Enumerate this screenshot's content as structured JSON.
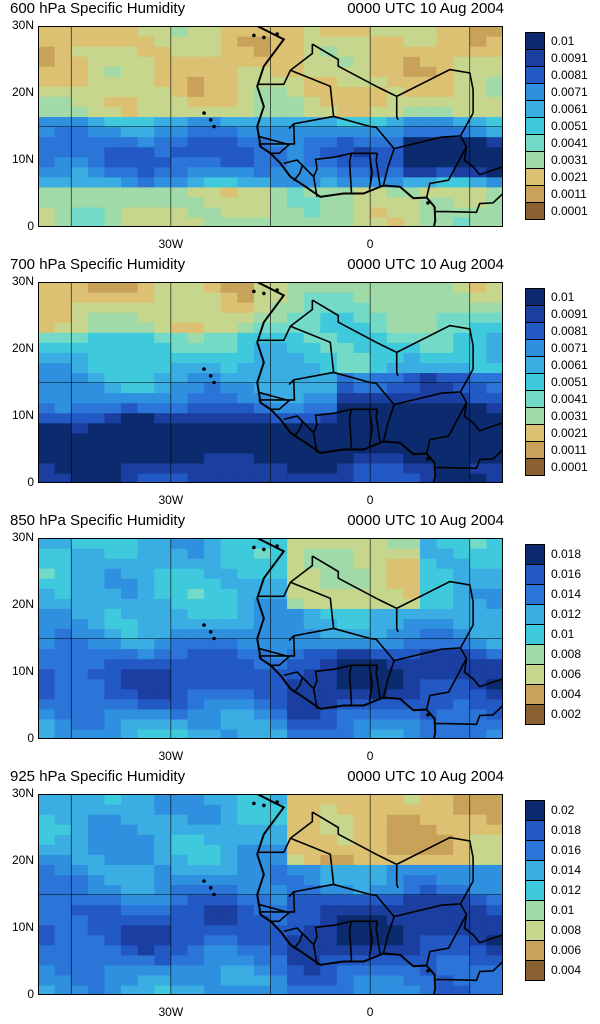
{
  "panels": [
    {
      "title": "600 hPa Specific Humidity",
      "time": "0000 UTC 10 Aug 2004",
      "levels": [
        "0.01",
        "0.0091",
        "0.0081",
        "0.0071",
        "0.0061",
        "0.0051",
        "0.0041",
        "0.0031",
        "0.0021",
        "0.0011",
        "0.0001"
      ],
      "field": "dry"
    },
    {
      "title": "700 hPa Specific Humidity",
      "time": "0000 UTC 10 Aug 2004",
      "levels": [
        "0.01",
        "0.0091",
        "0.0081",
        "0.0071",
        "0.0061",
        "0.0051",
        "0.0041",
        "0.0031",
        "0.0021",
        "0.0011",
        "0.0001"
      ],
      "field": "mid"
    },
    {
      "title": "850 hPa Specific Humidity",
      "time": "0000 UTC 10 Aug 2004",
      "levels": [
        "0.018",
        "0.016",
        "0.014",
        "0.012",
        "0.01",
        "0.008",
        "0.006",
        "0.004",
        "0.002"
      ],
      "field": "moist"
    },
    {
      "title": "925 hPa Specific Humidity",
      "time": "0000 UTC 10 Aug 2004",
      "levels": [
        "0.02",
        "0.018",
        "0.016",
        "0.014",
        "0.012",
        "0.01",
        "0.008",
        "0.006",
        "0.004"
      ],
      "field": "surface"
    }
  ],
  "axes": {
    "lat_labels": [
      "30N",
      "20N",
      "10N",
      "0"
    ],
    "lon_labels": [
      "30W",
      "0"
    ]
  },
  "colors": {
    "wet": "#0c2a6e",
    "mid_blue": "#2b74d8",
    "cyan": "#3fc9dc",
    "green": "#9fdaa8",
    "tan": "#d9b866",
    "dry": "#8a6232"
  }
}
